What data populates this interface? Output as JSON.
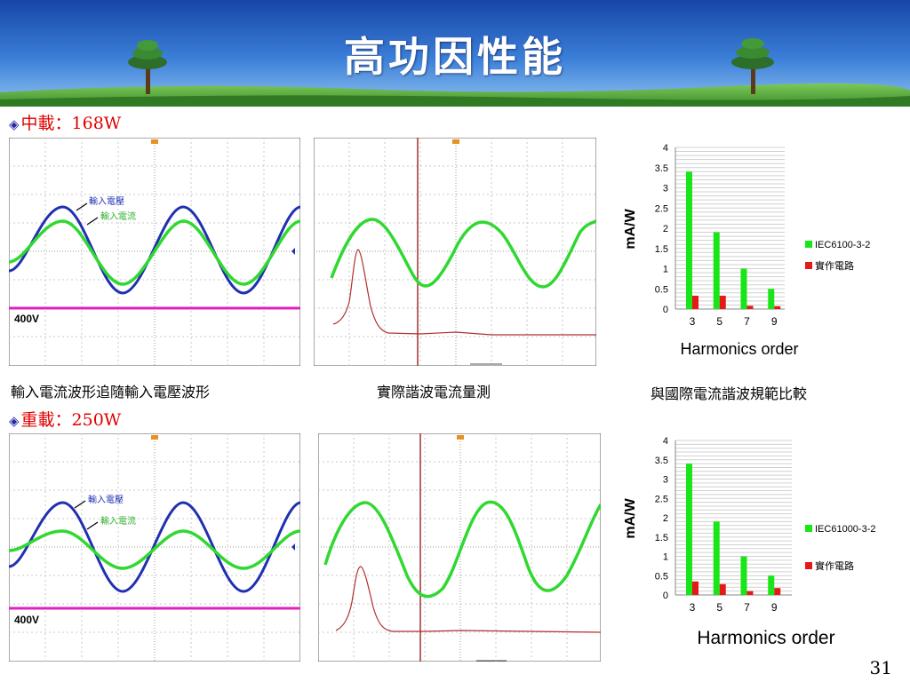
{
  "slide": {
    "title": "高功因性能",
    "page_number": "31"
  },
  "sections": [
    {
      "bullet": "◈",
      "label": "中載：168W",
      "scope_waveform": {
        "voltage_label": "輸入電壓",
        "current_label": "輸入電流",
        "scale_label": "400V"
      },
      "captions": [
        "輸入電流波形追隨輸入電壓波形",
        "實際諧波電流量測",
        "與國際電流諧波規範比較"
      ]
    },
    {
      "bullet": "◈",
      "label": "重載：250W",
      "scope_waveform": {
        "voltage_label": "輸入電壓",
        "current_label": "輸入電流",
        "scale_label": "400V"
      }
    }
  ],
  "colors": {
    "standard": "#19e619",
    "measured": "#e61919",
    "voltage": "#2030b0",
    "current": "#30d830",
    "ref": "#e020c0"
  },
  "chart_data": [
    {
      "type": "bar",
      "categories": [
        "3",
        "5",
        "7",
        "9"
      ],
      "series": [
        {
          "name": "IEC6100-3-2",
          "values": [
            3.4,
            1.9,
            1.0,
            0.5
          ]
        },
        {
          "name": "實作電路",
          "values": [
            0.33,
            0.33,
            0.08,
            0.07
          ]
        }
      ],
      "ylim": [
        0,
        4
      ],
      "yticks": [
        "0",
        "0.5",
        "1",
        "1.5",
        "2",
        "2.5",
        "3",
        "3.5",
        "4"
      ],
      "ylabel": "mA/W",
      "xlabel": "Harmonics order",
      "legend": "right"
    },
    {
      "type": "bar",
      "categories": [
        "3",
        "5",
        "7",
        "9"
      ],
      "series": [
        {
          "name": "IEC61000-3-2",
          "values": [
            3.4,
            1.9,
            1.0,
            0.5
          ]
        },
        {
          "name": "實作電路",
          "values": [
            0.35,
            0.28,
            0.1,
            0.18
          ]
        }
      ],
      "ylim": [
        0,
        4
      ],
      "yticks": [
        "0",
        "0.5",
        "1",
        "1.5",
        "2",
        "2.5",
        "3",
        "3.5",
        "4"
      ],
      "ylabel": "mA/W",
      "xlabel": "Harmonics order",
      "legend": "right"
    }
  ]
}
